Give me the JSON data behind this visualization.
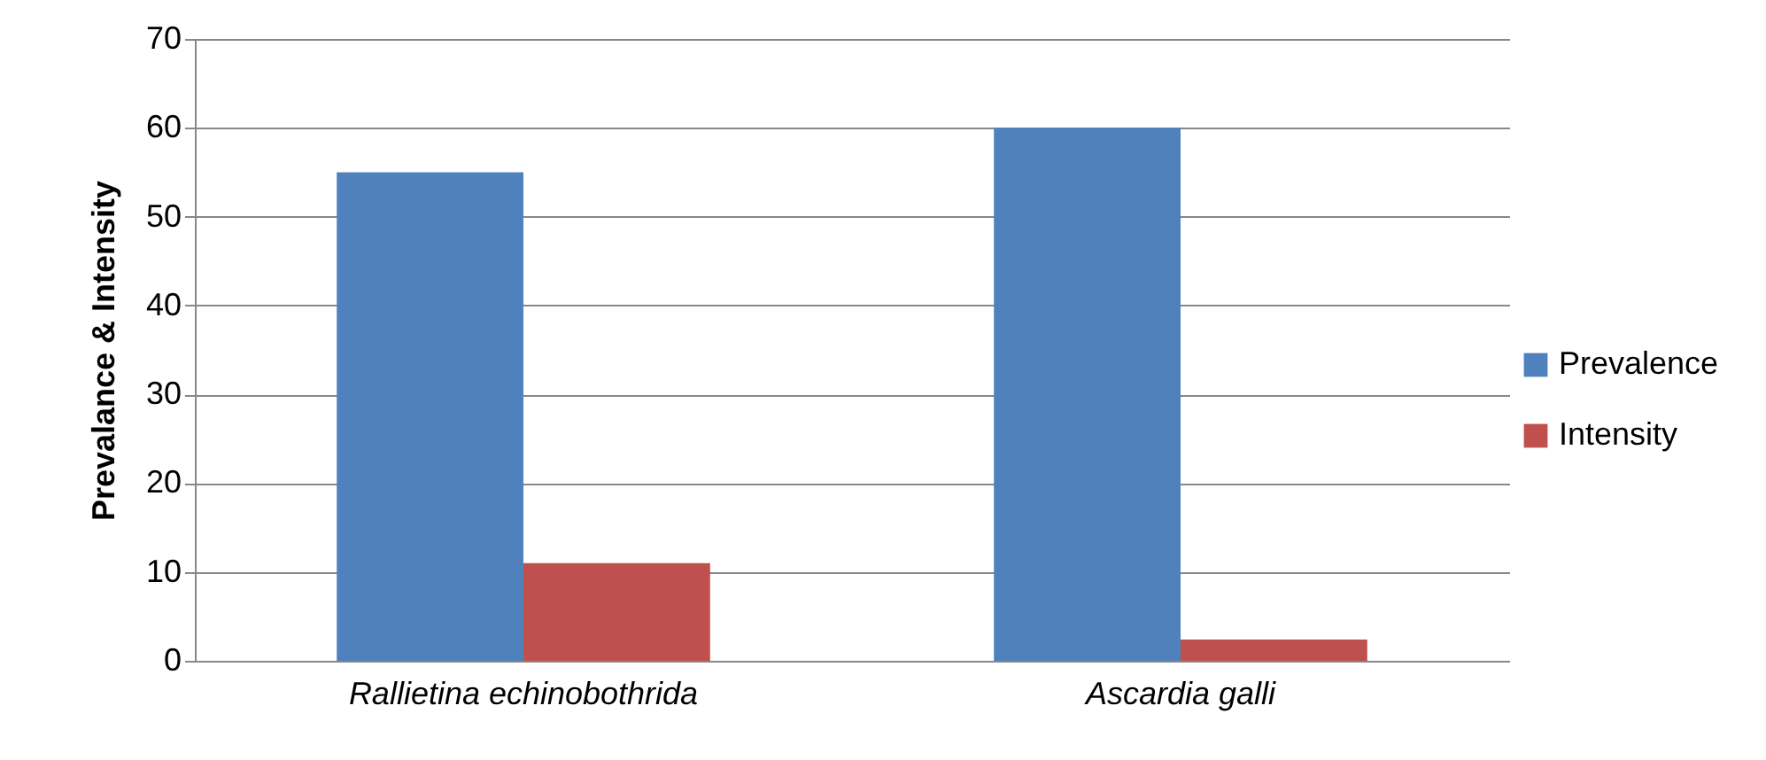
{
  "chart_data": {
    "type": "bar",
    "ylabel": "Prevalance & Intensity",
    "categories": [
      "Rallietina echinobothrida",
      "Ascardia galli"
    ],
    "series": [
      {
        "name": "Prevalence",
        "color": "#4f81bd",
        "values": [
          55,
          60
        ]
      },
      {
        "name": "Intensity",
        "color": "#c0504d",
        "values": [
          11,
          2.4
        ]
      }
    ],
    "ylim": [
      0,
      70
    ],
    "yticks": [
      0,
      10,
      20,
      30,
      40,
      50,
      60,
      70
    ],
    "grid": "y",
    "legend": "right"
  }
}
